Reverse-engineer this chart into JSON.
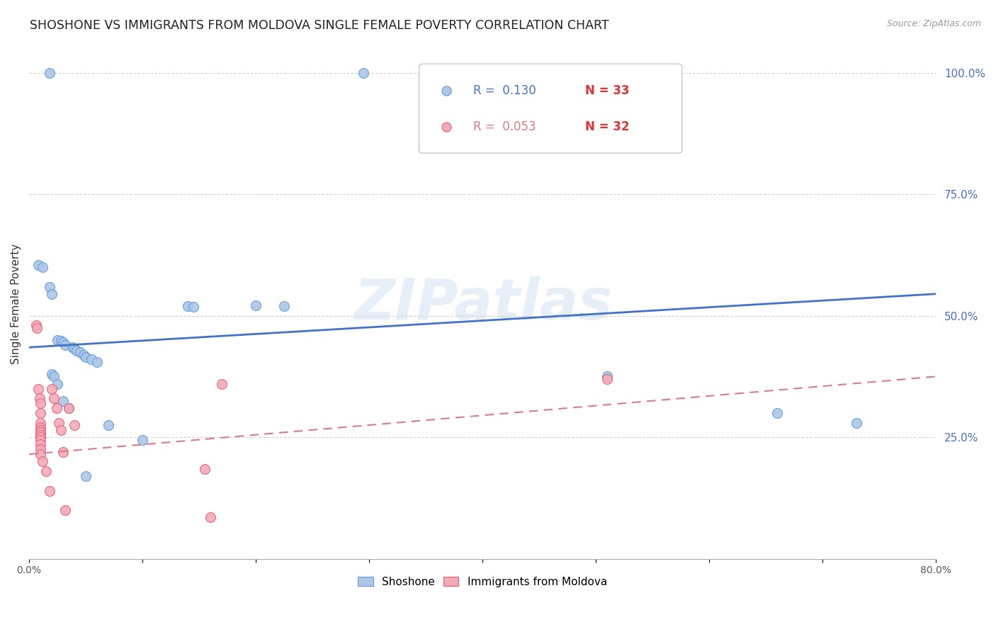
{
  "title": "SHOSHONE VS IMMIGRANTS FROM MOLDOVA SINGLE FEMALE POVERTY CORRELATION CHART",
  "source": "Source: ZipAtlas.com",
  "ylabel": "Single Female Poverty",
  "watermark": "ZIPatlas",
  "xlim": [
    0.0,
    0.8
  ],
  "ylim": [
    0.0,
    1.05
  ],
  "xtick_positions": [
    0.0,
    0.1,
    0.2,
    0.3,
    0.4,
    0.5,
    0.6,
    0.7,
    0.8
  ],
  "xtick_labels": [
    "0.0%",
    "",
    "",
    "",
    "",
    "",
    "",
    "",
    "80.0%"
  ],
  "ytick_vals_right": [
    0.25,
    0.5,
    0.75,
    1.0
  ],
  "ytick_labels_right": [
    "25.0%",
    "50.0%",
    "75.0%",
    "100.0%"
  ],
  "shoshone_x": [
    0.018,
    0.295,
    0.008,
    0.012,
    0.018,
    0.02,
    0.025,
    0.028,
    0.03,
    0.032,
    0.038,
    0.04,
    0.042,
    0.045,
    0.048,
    0.05,
    0.055,
    0.06,
    0.02,
    0.022,
    0.025,
    0.03,
    0.035,
    0.14,
    0.145,
    0.2,
    0.225,
    0.07,
    0.51,
    0.66,
    0.73,
    0.05,
    0.1
  ],
  "shoshone_y": [
    1.0,
    1.0,
    0.605,
    0.6,
    0.56,
    0.545,
    0.45,
    0.448,
    0.445,
    0.44,
    0.435,
    0.432,
    0.428,
    0.425,
    0.42,
    0.415,
    0.41,
    0.405,
    0.38,
    0.375,
    0.36,
    0.325,
    0.31,
    0.52,
    0.518,
    0.522,
    0.52,
    0.275,
    0.375,
    0.3,
    0.28,
    0.17,
    0.245
  ],
  "moldova_x": [
    0.006,
    0.007,
    0.008,
    0.009,
    0.01,
    0.01,
    0.01,
    0.01,
    0.01,
    0.01,
    0.01,
    0.01,
    0.01,
    0.01,
    0.01,
    0.01,
    0.012,
    0.015,
    0.018,
    0.02,
    0.022,
    0.024,
    0.026,
    0.028,
    0.03,
    0.032,
    0.035,
    0.04,
    0.155,
    0.17,
    0.51,
    0.16
  ],
  "moldova_y": [
    0.48,
    0.475,
    0.35,
    0.33,
    0.32,
    0.3,
    0.28,
    0.27,
    0.265,
    0.26,
    0.255,
    0.25,
    0.245,
    0.235,
    0.225,
    0.215,
    0.2,
    0.18,
    0.14,
    0.35,
    0.33,
    0.31,
    0.28,
    0.265,
    0.22,
    0.1,
    0.31,
    0.275,
    0.185,
    0.36,
    0.37,
    0.085
  ],
  "shoshone_color": "#adc6e8",
  "moldova_color": "#f5aab8",
  "shoshone_edge_color": "#5b9bd5",
  "moldova_edge_color": "#e06070",
  "shoshone_line_color": "#4472c4",
  "moldova_line_color": "#d9798a",
  "shoshone_R": "0.130",
  "shoshone_N": "33",
  "moldova_R": "0.053",
  "moldova_N": "32",
  "shoshone_trend_x": [
    0.0,
    0.8
  ],
  "shoshone_trend_y": [
    0.435,
    0.545
  ],
  "moldova_trend_x": [
    0.0,
    0.8
  ],
  "moldova_trend_y": [
    0.215,
    0.375
  ],
  "grid_color": "#d0d0d0",
  "background_color": "#ffffff",
  "title_fontsize": 12.5,
  "axis_label_fontsize": 11,
  "tick_fontsize": 10,
  "marker_size": 100
}
